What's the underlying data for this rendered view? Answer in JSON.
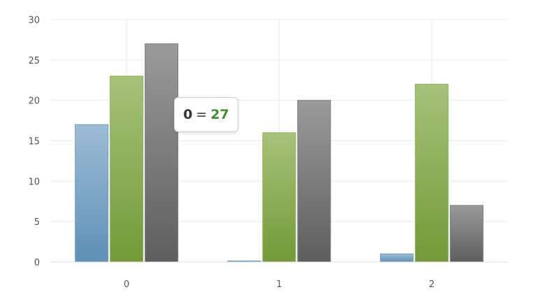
{
  "chart_data": {
    "type": "bar",
    "categories": [
      "0",
      "1",
      "2"
    ],
    "series": [
      {
        "values": [
          17,
          0.1,
          1
        ],
        "color": "#6f9ec4"
      },
      {
        "values": [
          23,
          16,
          22
        ],
        "color": "#8fb055"
      },
      {
        "values": [
          27,
          20,
          7
        ],
        "color": "#7a7a7a"
      }
    ],
    "ylim": [
      0,
      30
    ],
    "yticks": [
      "0",
      "5",
      "10",
      "15",
      "20",
      "25",
      "30"
    ],
    "grid": true,
    "tooltip": {
      "label": "0",
      "separator": "=",
      "value": "27"
    }
  }
}
